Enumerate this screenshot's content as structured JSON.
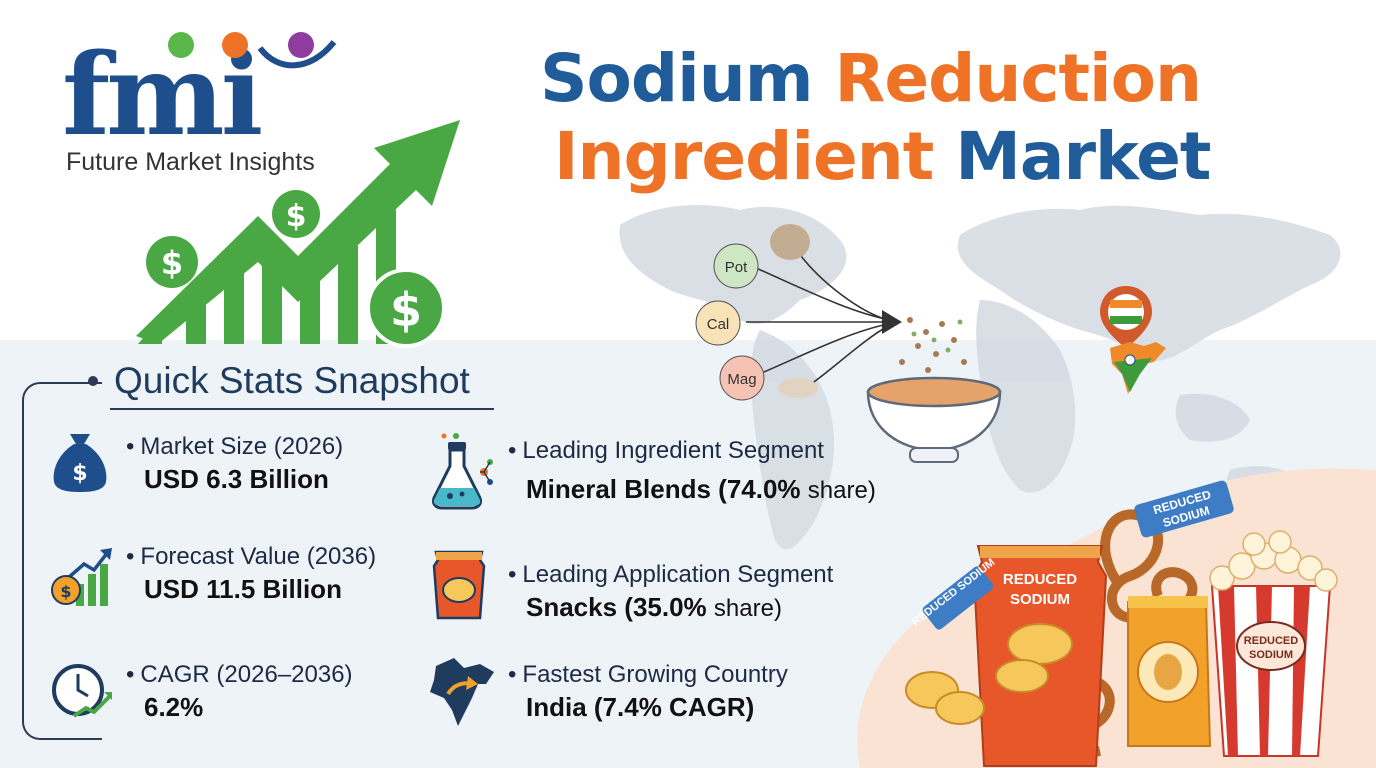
{
  "brand": {
    "logo_letters": "fmi",
    "name": "Future Market Insights",
    "colors": {
      "navy": "#1f4e8c",
      "green": "#5ab84a",
      "orange": "#ee7326",
      "purple": "#8e3c9e"
    }
  },
  "title": {
    "word1": "Sodium",
    "word2": "Reduction",
    "word3": "Ingredient",
    "word4": "Market",
    "colors": {
      "blue": "#1f5c99",
      "orange": "#ee7326"
    }
  },
  "illustration": {
    "ingredients": [
      "Pot",
      "Cal",
      "Mag"
    ],
    "pack_label": "REDUCED SODIUM",
    "tag_label": "REDUCED SODIUM",
    "icons": [
      "growth-arrow-icon",
      "dollar-coin-icon",
      "world-map",
      "soup-bowl-icon",
      "india-pin-icon",
      "chips-bag-icon",
      "popcorn-box-icon",
      "pretzel-icon"
    ]
  },
  "quick_stats": {
    "title": "Quick Stats Snapshot",
    "items": [
      {
        "label": "Market Size (2026)",
        "value": "USD 6.3 Billion",
        "icon": "money-bag-icon"
      },
      {
        "label": "Forecast Value (2036)",
        "value": "USD 11.5 Billion",
        "icon": "growth-chart-icon"
      },
      {
        "label": "CAGR (2026–2036)",
        "value": "6.2%",
        "icon": "clock-growth-icon"
      },
      {
        "label": "Leading Ingredient Segment",
        "value": "Mineral Blends (74.0%",
        "value_suffix": "share)",
        "icon": "flask-icon"
      },
      {
        "label": "Leading Application Segment",
        "value": "Snacks (35.0%",
        "value_suffix": "share)",
        "icon": "snack-bag-icon"
      },
      {
        "label": "Fastest Growing Country",
        "value": "India (7.4% CAGR)",
        "icon": "india-map-icon"
      }
    ]
  }
}
